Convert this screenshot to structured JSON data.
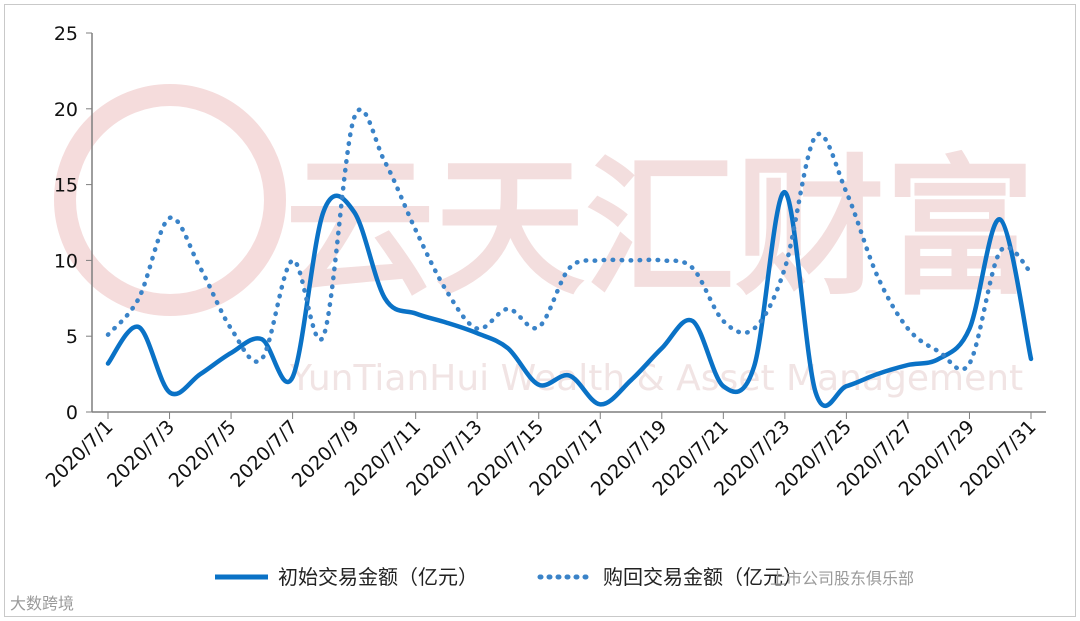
{
  "chart_data": {
    "type": "line",
    "title": "",
    "xlabel": "",
    "ylabel": "",
    "ylim": [
      0,
      25
    ],
    "yticks": [
      0,
      5,
      10,
      15,
      20,
      25
    ],
    "grid": false,
    "legend_position": "bottom",
    "categories": [
      "2020/7/1",
      "2020/7/2",
      "2020/7/3",
      "2020/7/4",
      "2020/7/5",
      "2020/7/6",
      "2020/7/7",
      "2020/7/8",
      "2020/7/9",
      "2020/7/10",
      "2020/7/11",
      "2020/7/12",
      "2020/7/13",
      "2020/7/14",
      "2020/7/15",
      "2020/7/16",
      "2020/7/17",
      "2020/7/18",
      "2020/7/19",
      "2020/7/20",
      "2020/7/21",
      "2020/7/22",
      "2020/7/23",
      "2020/7/24",
      "2020/7/25",
      "2020/7/26",
      "2020/7/27",
      "2020/7/28",
      "2020/7/29",
      "2020/7/30",
      "2020/7/31"
    ],
    "xtick_labels": [
      "2020/7/1",
      "2020/7/3",
      "2020/7/5",
      "2020/7/7",
      "2020/7/9",
      "2020/7/11",
      "2020/7/13",
      "2020/7/15",
      "2020/7/17",
      "2020/7/19",
      "2020/7/21",
      "2020/7/23",
      "2020/7/25",
      "2020/7/27",
      "2020/7/29",
      "2020/7/31"
    ],
    "series": [
      {
        "name": "初始交易金额（亿元）",
        "style": "solid",
        "color": "#0a72c6",
        "values": [
          3.2,
          5.6,
          1.3,
          2.5,
          3.9,
          4.8,
          2.3,
          13.2,
          13.2,
          7.5,
          6.5,
          5.9,
          5.2,
          4.2,
          1.8,
          2.4,
          0.5,
          2.1,
          4.2,
          6.0,
          1.7,
          3.0,
          14.5,
          1.3,
          1.7,
          2.5,
          3.1,
          3.5,
          5.5,
          12.7,
          3.5
        ]
      },
      {
        "name": "购回交易金额（亿元）",
        "style": "dotted",
        "color": "#3a83c8",
        "values": [
          5.1,
          7.5,
          12.8,
          9.5,
          5.5,
          3.5,
          10.0,
          5.0,
          19.4,
          16.5,
          12.0,
          8.0,
          5.5,
          6.8,
          5.6,
          9.5,
          10.0,
          10.0,
          10.0,
          9.5,
          6.0,
          5.5,
          9.5,
          18.2,
          14.5,
          9.0,
          5.5,
          4.0,
          3.2,
          10.6,
          9.2
        ]
      }
    ]
  },
  "watermarks": {
    "corner_left": "大数跨境",
    "corner_right": "上市公司股东俱乐部",
    "background_cn": "云天汇财富",
    "background_en": "YunTianHui Wealth & Asset Management"
  }
}
